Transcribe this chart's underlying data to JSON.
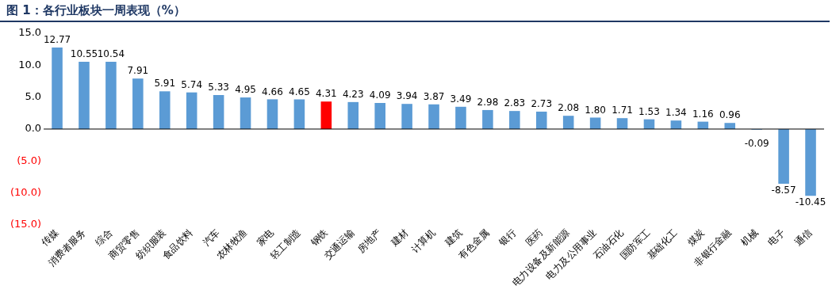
{
  "chart_data": {
    "type": "bar",
    "title": "图 1：各行业板块一周表现（%）",
    "categories": [
      "传媒",
      "消费者服务",
      "综合",
      "商贸零售",
      "纺织服装",
      "食品饮料",
      "汽车",
      "农林牧渔",
      "家电",
      "轻工制造",
      "钢铁",
      "交通运输",
      "房地产",
      "建材",
      "计算机",
      "建筑",
      "有色金属",
      "银行",
      "医药",
      "电力设备及新能源",
      "电力及公用事业",
      "石油石化",
      "国防军工",
      "基础化工",
      "煤炭",
      "非银行金融",
      "机械",
      "电子",
      "通信"
    ],
    "values": [
      12.77,
      10.55,
      10.54,
      7.91,
      5.91,
      5.74,
      5.33,
      4.95,
      4.66,
      4.65,
      4.31,
      4.23,
      4.09,
      3.94,
      3.87,
      3.49,
      2.98,
      2.83,
      2.73,
      2.08,
      1.8,
      1.71,
      1.53,
      1.34,
      1.16,
      0.96,
      -0.09,
      -8.57,
      -10.45
    ],
    "colors": [
      "#5b9bd5",
      "#5b9bd5",
      "#5b9bd5",
      "#5b9bd5",
      "#5b9bd5",
      "#5b9bd5",
      "#5b9bd5",
      "#5b9bd5",
      "#5b9bd5",
      "#5b9bd5",
      "#ff0000",
      "#5b9bd5",
      "#5b9bd5",
      "#5b9bd5",
      "#5b9bd5",
      "#5b9bd5",
      "#5b9bd5",
      "#5b9bd5",
      "#5b9bd5",
      "#5b9bd5",
      "#5b9bd5",
      "#5b9bd5",
      "#5b9bd5",
      "#5b9bd5",
      "#5b9bd5",
      "#5b9bd5",
      "#5b9bd5",
      "#5b9bd5",
      "#5b9bd5"
    ],
    "ylim": [
      -15,
      15
    ],
    "yticks": [
      {
        "value": 15,
        "label": "15.0"
      },
      {
        "value": 10,
        "label": "10.0"
      },
      {
        "value": 5,
        "label": "5.0"
      },
      {
        "value": 0,
        "label": "0.0"
      },
      {
        "value": -5,
        "label": "(5.0)"
      },
      {
        "value": -10,
        "label": "(10.0)"
      },
      {
        "value": -15,
        "label": "(15.0)"
      }
    ],
    "value_labels": [
      "12.77",
      "10.55",
      "10.54",
      "7.91",
      "5.91",
      "5.74",
      "5.33",
      "4.95",
      "4.66",
      "4.65",
      "4.31",
      "4.23",
      "4.09",
      "3.94",
      "3.87",
      "3.49",
      "2.98",
      "2.83",
      "2.73",
      "2.08",
      "1.80",
      "1.71",
      "1.53",
      "1.34",
      "1.16",
      "0.96",
      "-0.09",
      "-8.57",
      "-10.45"
    ],
    "legend": false
  }
}
